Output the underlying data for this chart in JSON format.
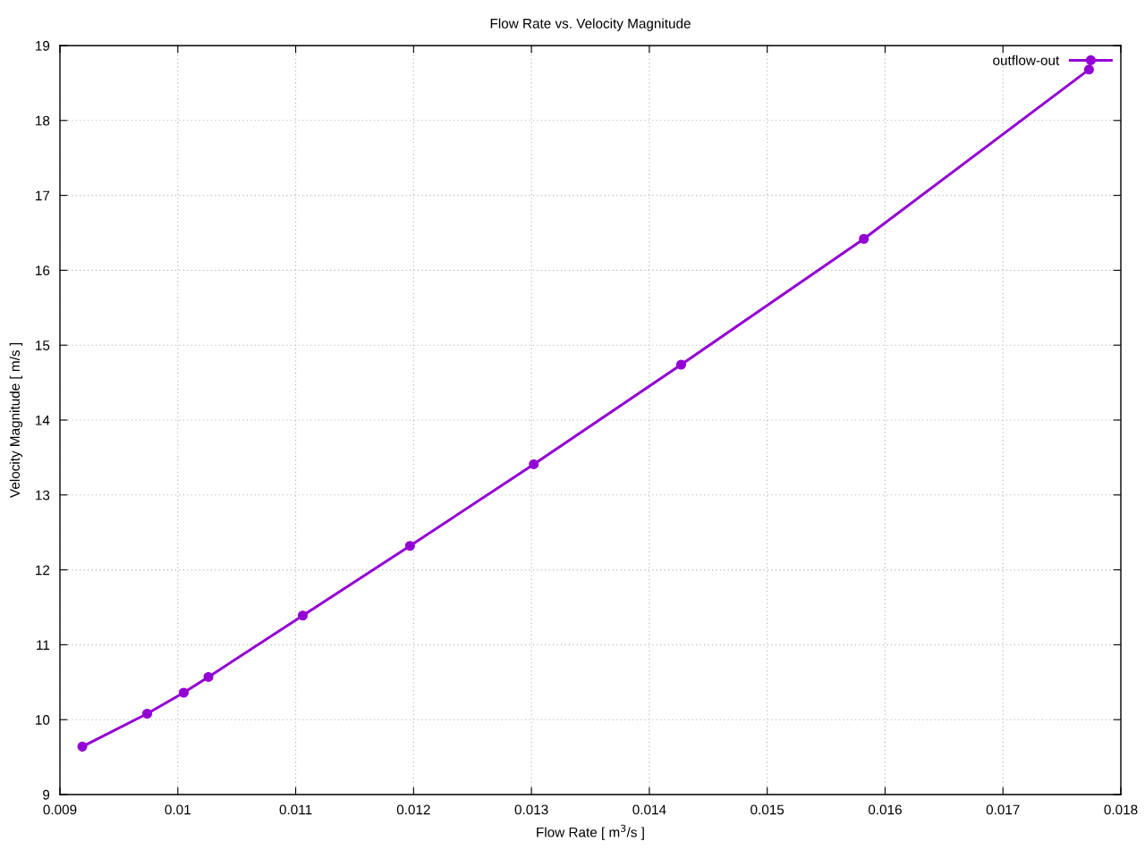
{
  "chart_data": {
    "type": "line",
    "title": "Flow Rate vs. Velocity Magnitude",
    "xlabel": "Flow Rate [ m$^{3}$/s ]",
    "ylabel": "Velocity Magnitude [ m/s ]",
    "x": [
      0.00919,
      0.00974,
      0.01005,
      0.01026,
      0.01106,
      0.01197,
      0.01302,
      0.01427,
      0.01582,
      0.01773
    ],
    "series": [
      {
        "name": "outflow-out",
        "color": "#9400d3",
        "values": [
          9.64,
          10.08,
          10.36,
          10.57,
          11.39,
          12.32,
          13.41,
          14.74,
          16.42,
          18.68
        ]
      }
    ],
    "xlim": [
      0.009,
      0.018
    ],
    "xticks": [
      0.009,
      0.01,
      0.011,
      0.012,
      0.013,
      0.014,
      0.015,
      0.016,
      0.017,
      0.018
    ],
    "ylim": [
      9,
      19
    ],
    "yticks": [
      9,
      10,
      11,
      12,
      13,
      14,
      15,
      16,
      17,
      18,
      19
    ],
    "grid": true,
    "legend": "top right",
    "marker": "circle",
    "line_style": "solid"
  }
}
